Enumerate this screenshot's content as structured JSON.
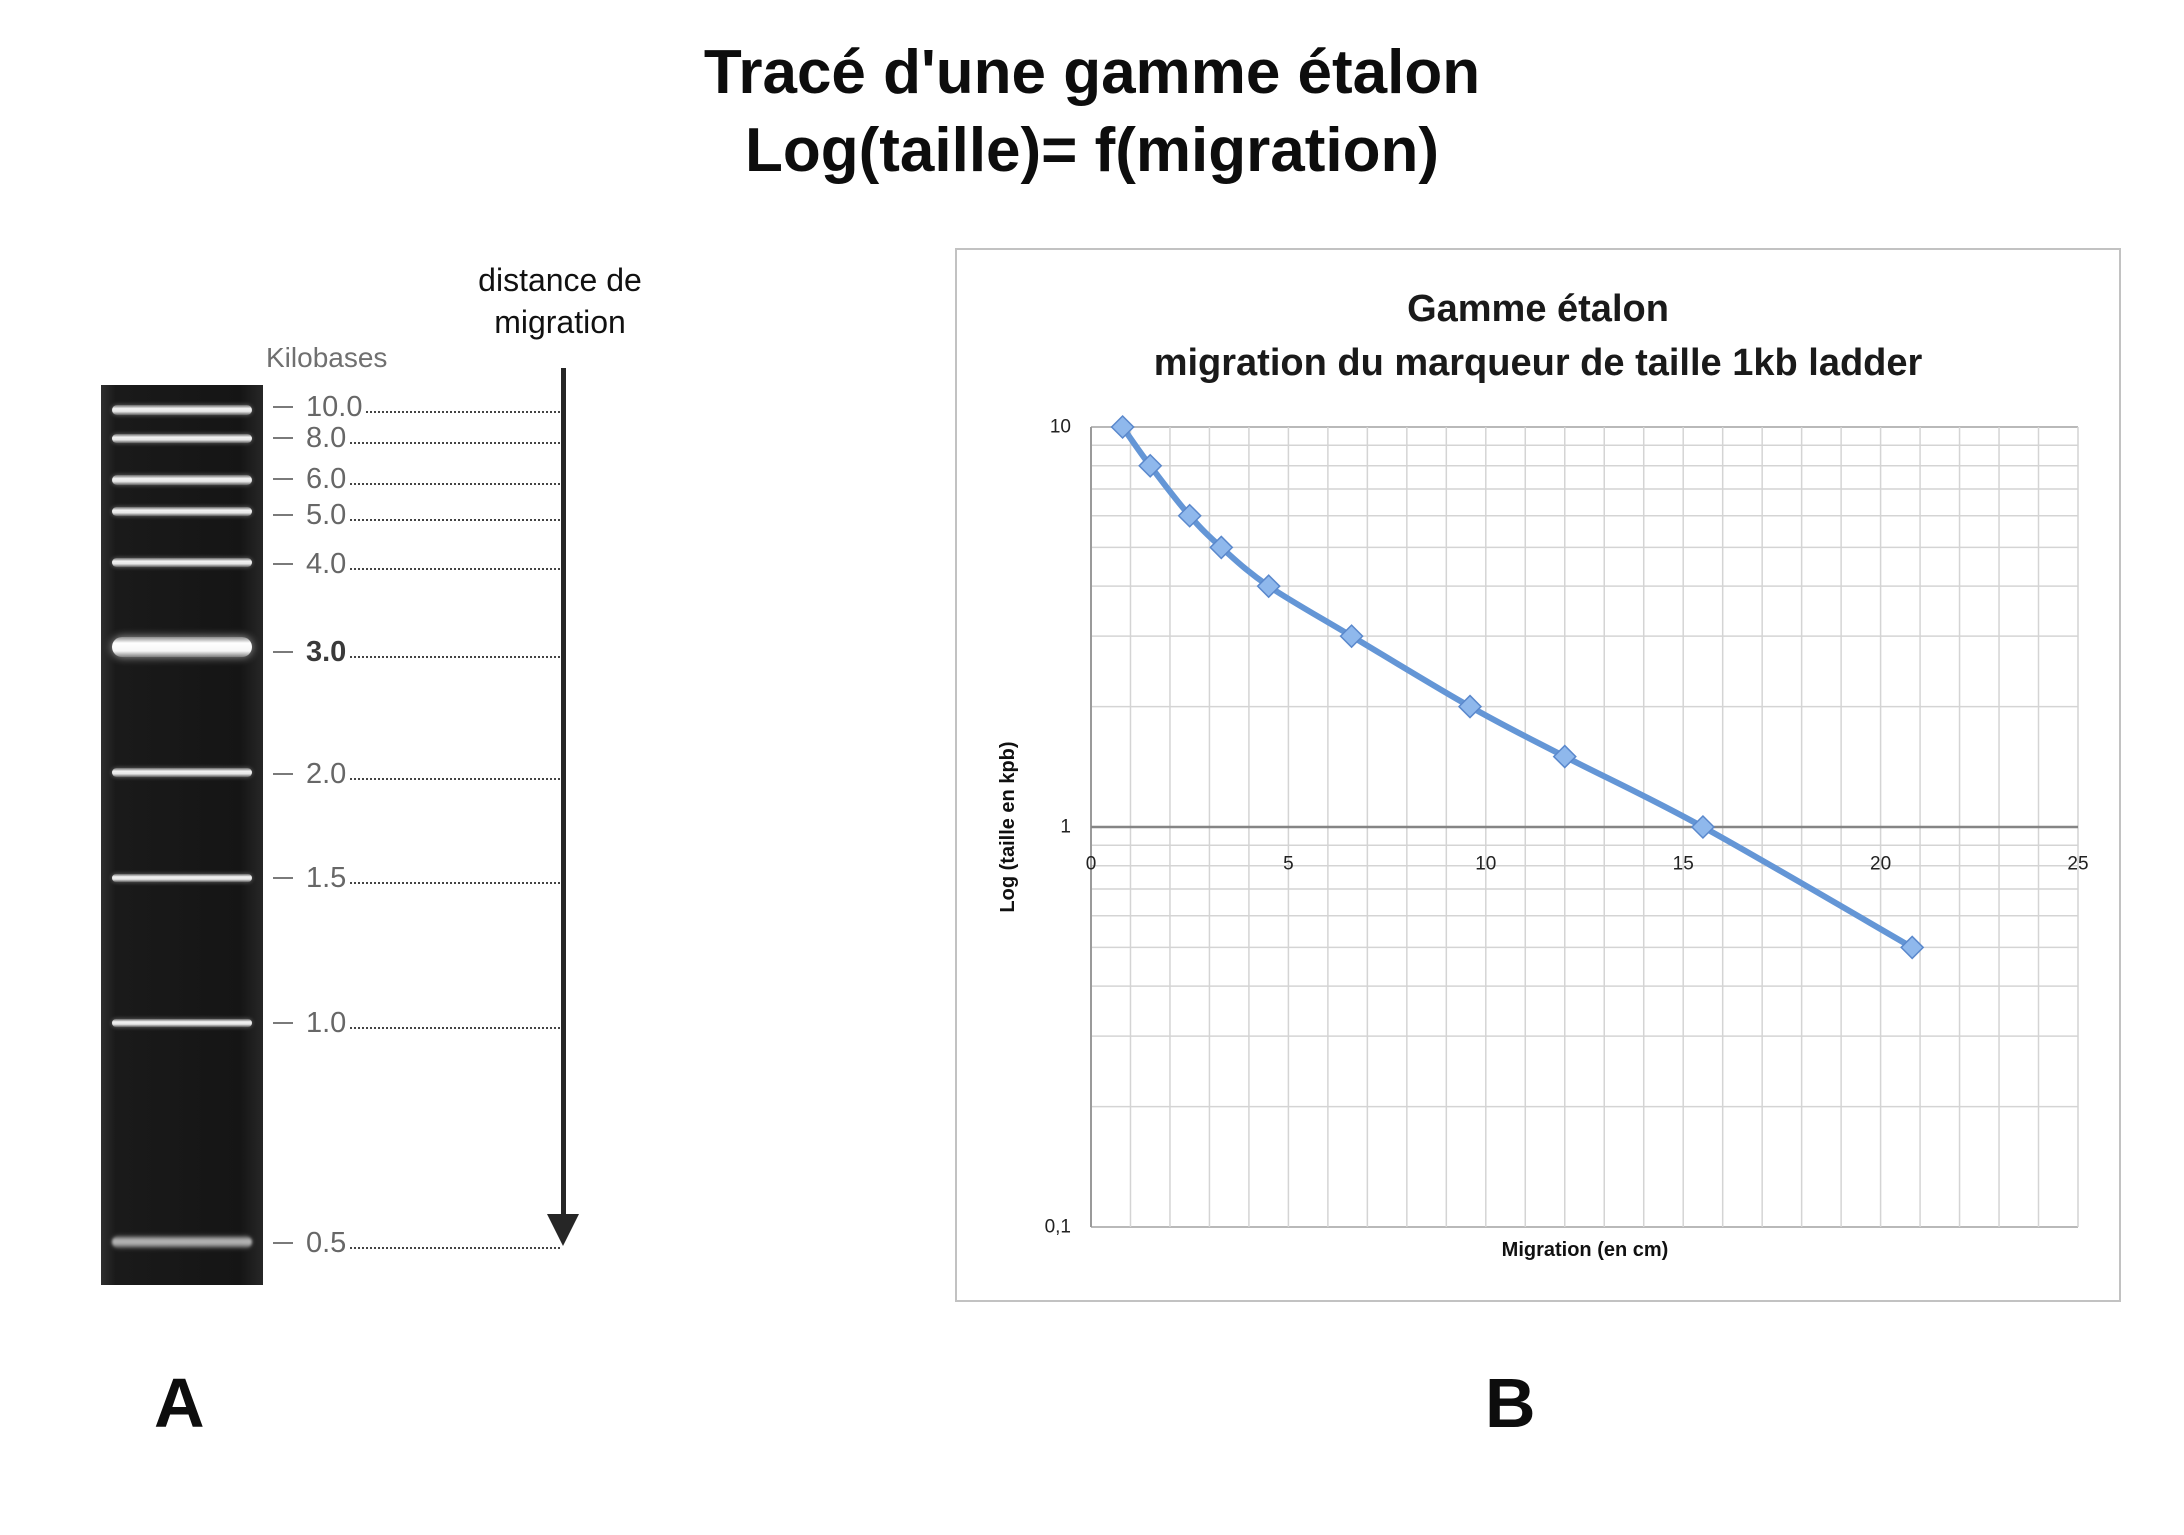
{
  "title": {
    "line1": "Tracé d'une gamme étalon",
    "line2": "Log(taille)= f(migration)"
  },
  "panel_a": {
    "label": "A",
    "unit_label": "Kilobases",
    "arrow_caption": {
      "line1": "distance de",
      "line2": "migration"
    },
    "bands": [
      {
        "size": "10.0"
      },
      {
        "size": "8.0"
      },
      {
        "size": "6.0"
      },
      {
        "size": "5.0"
      },
      {
        "size": "4.0"
      },
      {
        "size": "3.0"
      },
      {
        "size": "2.0"
      },
      {
        "size": "1.5"
      },
      {
        "size": "1.0"
      },
      {
        "size": "0.5"
      }
    ]
  },
  "panel_b": {
    "label": "B"
  },
  "chart_data": {
    "type": "line",
    "title": "Gamme étalon",
    "subtitle": "migration du marqueur de taille 1kb ladder",
    "xlabel": "Migration (en cm)",
    "ylabel": "Log (taille en kpb)",
    "xlim": [
      0,
      25
    ],
    "ylim": [
      0.1,
      10
    ],
    "yscale": "log",
    "x_axis_crosses_y": 1,
    "x_grid_step": 1,
    "grid": true,
    "smooth": true,
    "marker": "diamond",
    "xticks": [
      {
        "value": 0,
        "label": "0"
      },
      {
        "value": 5,
        "label": "5"
      },
      {
        "value": 10,
        "label": "10"
      },
      {
        "value": 15,
        "label": "15"
      },
      {
        "value": 20,
        "label": "20"
      },
      {
        "value": 25,
        "label": "25"
      }
    ],
    "yticks": [
      {
        "value": 0.1,
        "label": "0,1"
      },
      {
        "value": 1,
        "label": "1"
      },
      {
        "value": 10,
        "label": "10"
      }
    ],
    "series": [
      {
        "color": "#6496d6",
        "marker_fill": "#8fb8ec",
        "marker_stroke": "#5a88cc",
        "x": [
          0.8,
          1.5,
          2.5,
          3.3,
          4.5,
          6.6,
          9.6,
          12.0,
          15.5,
          20.8
        ],
        "y": [
          10,
          8,
          6,
          5,
          4,
          3,
          2,
          1.5,
          1,
          0.5
        ]
      }
    ]
  }
}
